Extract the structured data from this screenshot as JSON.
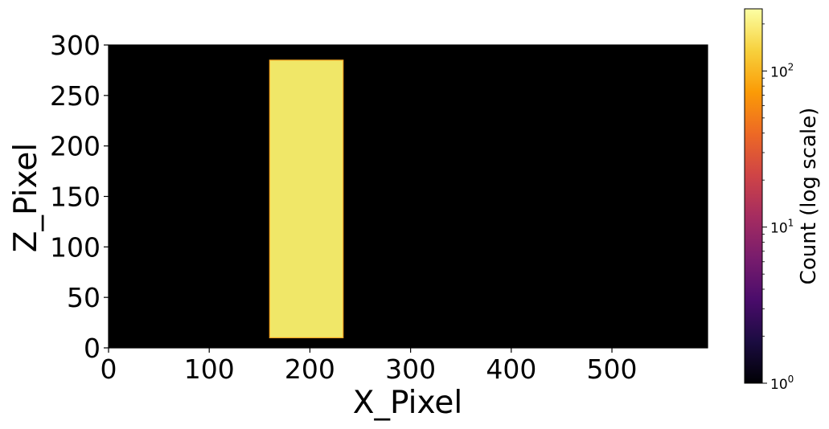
{
  "chart_data": {
    "type": "heatmap",
    "xlabel": "X_Pixel",
    "ylabel": "Z_Pixel",
    "xlim": [
      0,
      595
    ],
    "ylim": [
      0,
      300
    ],
    "x_ticks": [
      0,
      100,
      200,
      300,
      400,
      500
    ],
    "x_tick_labels": [
      "0",
      "100",
      "200",
      "300",
      "400",
      "500"
    ],
    "y_ticks": [
      0,
      50,
      100,
      150,
      200,
      250,
      300
    ],
    "y_tick_labels": [
      "0",
      "50",
      "100",
      "150",
      "200",
      "250",
      "300"
    ],
    "background_value": 1,
    "background_color": "#000000",
    "regions": [
      {
        "x_range": [
          160,
          233
        ],
        "z_range": [
          10,
          285
        ],
        "count": 200,
        "fill_color": "#F0E768",
        "edge_color": "#F5A623"
      }
    ],
    "colorbar": {
      "label": "Count (log scale)",
      "scale": "log",
      "range": [
        1,
        250
      ],
      "ticks": [
        {
          "value": 1,
          "base": "10",
          "exp": "0"
        },
        {
          "value": 10,
          "base": "10",
          "exp": "1"
        },
        {
          "value": 100,
          "base": "10",
          "exp": "2"
        }
      ],
      "colormap": "inferno",
      "colormap_stops": [
        "#000004",
        "#1b0c41",
        "#4a0c6b",
        "#781c6d",
        "#a52c60",
        "#cf4446",
        "#ed6925",
        "#fb9b06",
        "#f7d13d",
        "#fcffa4"
      ]
    },
    "grid": false
  }
}
